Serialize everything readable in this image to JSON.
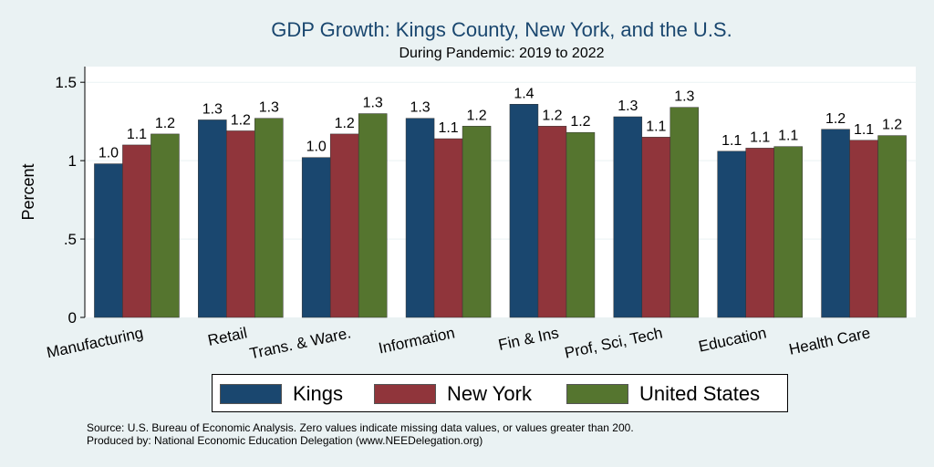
{
  "chart_data": {
    "type": "bar",
    "title": "GDP Growth: Kings County, New York, and the U.S.",
    "subtitle": "During Pandemic: 2019 to 2022",
    "xlabel": "",
    "ylabel": "Percent",
    "ylim": [
      0,
      1.6
    ],
    "yticks": [
      0,
      0.5,
      1,
      1.5
    ],
    "ytick_labels": [
      "0",
      ".5",
      "1",
      "1.5"
    ],
    "categories": [
      "Manufacturing",
      "Retail",
      "Trans. & Ware.",
      "Information",
      "Fin & Ins",
      "Prof, Sci, Tech",
      "Education",
      "Health Care"
    ],
    "series": [
      {
        "name": "Kings",
        "color": "#1a476f",
        "values": [
          0.98,
          1.26,
          1.02,
          1.27,
          1.36,
          1.28,
          1.06,
          1.2
        ],
        "labels": [
          "1.0",
          "1.3",
          "1.0",
          "1.3",
          "1.4",
          "1.3",
          "1.1",
          "1.2"
        ]
      },
      {
        "name": "New York",
        "color": "#90353b",
        "values": [
          1.1,
          1.19,
          1.17,
          1.14,
          1.22,
          1.15,
          1.08,
          1.13
        ],
        "labels": [
          "1.1",
          "1.2",
          "1.2",
          "1.1",
          "1.2",
          "1.1",
          "1.1",
          "1.1"
        ]
      },
      {
        "name": "United States",
        "color": "#55752f",
        "values": [
          1.17,
          1.27,
          1.3,
          1.22,
          1.18,
          1.34,
          1.09,
          1.16
        ],
        "labels": [
          "1.2",
          "1.3",
          "1.3",
          "1.2",
          "1.2",
          "1.3",
          "1.1",
          "1.2"
        ]
      }
    ],
    "grid": true,
    "legend": "bottom"
  },
  "footer": {
    "source": "Source: U.S. Bureau of Economic Analysis. Zero values indicate missing data values, or values greater than 200.",
    "produced_by": "Produced by: National Economic Education Delegation (www.NEEDelegation.org)"
  }
}
